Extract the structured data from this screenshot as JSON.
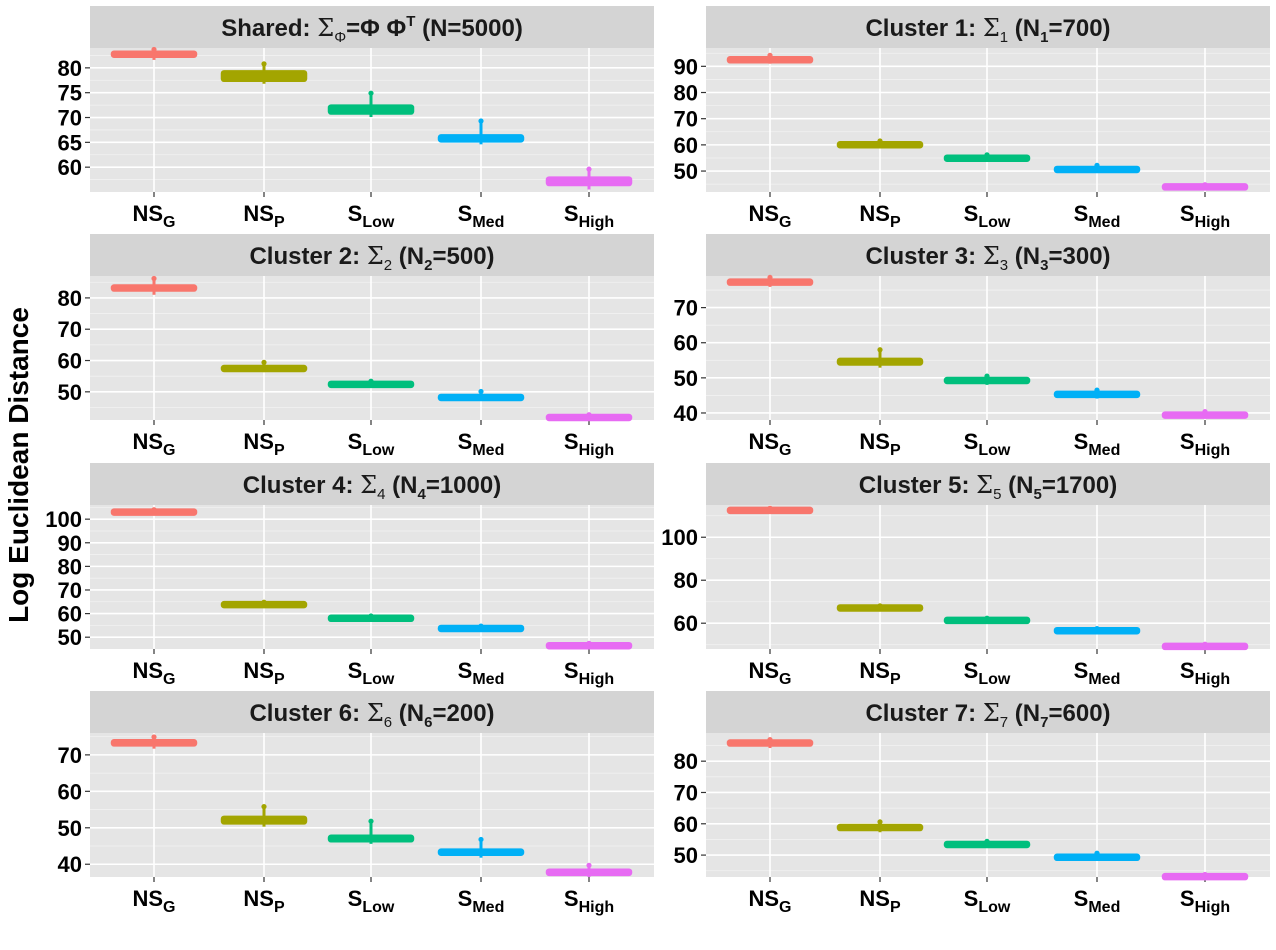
{
  "ylabel": "Log Euclidean Distance",
  "x_categories": [
    {
      "main": "NS",
      "sub": "G"
    },
    {
      "main": "NS",
      "sub": "P"
    },
    {
      "main": "S",
      "sub": "Low"
    },
    {
      "main": "S",
      "sub": "Med"
    },
    {
      "main": "S",
      "sub": "High"
    }
  ],
  "colors": {
    "NS_G": "#f8766d",
    "NS_P": "#a3a500",
    "S_Low": "#00bf7d",
    "S_Med": "#00b0f6",
    "S_High": "#e76bf3"
  },
  "chart_data": [
    {
      "type": "box",
      "strip": {
        "pre": "Shared: ",
        "sym": "Σ",
        "symSub": "Φ",
        "mid": "=Φ Φ",
        "midSup": "T",
        "post": " (N=5000)"
      },
      "ylim": [
        55,
        84
      ],
      "yticks": [
        60,
        65,
        70,
        75,
        80
      ],
      "boxes": [
        {
          "category": "NS_G",
          "q1": 82.4,
          "median": 82.8,
          "q3": 83.1,
          "lo": 81.6,
          "hi": 83.7
        },
        {
          "category": "NS_P",
          "q1": 77.4,
          "median": 78.3,
          "q3": 79.3,
          "lo": 76.8,
          "hi": 80.8
        },
        {
          "category": "S_Low",
          "q1": 70.8,
          "median": 71.6,
          "q3": 72.4,
          "lo": 70.1,
          "hi": 74.9
        },
        {
          "category": "S_Med",
          "q1": 65.2,
          "median": 65.8,
          "q3": 66.4,
          "lo": 64.6,
          "hi": 69.3
        },
        {
          "category": "S_High",
          "q1": 56.4,
          "median": 57.1,
          "q3": 57.9,
          "lo": 55.5,
          "hi": 59.6
        }
      ]
    },
    {
      "type": "box",
      "strip": {
        "pre": "Cluster 1: ",
        "sym": "Σ",
        "symSub": "1",
        "mid": " (N",
        "midSub": "1",
        "post": "=700)"
      },
      "ylim": [
        42,
        97
      ],
      "yticks": [
        50,
        60,
        70,
        80,
        90
      ],
      "boxes": [
        {
          "category": "NS_G",
          "q1": 92.0,
          "median": 92.5,
          "q3": 93.0,
          "lo": 91.0,
          "hi": 94.2
        },
        {
          "category": "NS_P",
          "q1": 59.6,
          "median": 60.0,
          "q3": 60.5,
          "lo": 59.0,
          "hi": 61.5
        },
        {
          "category": "S_Low",
          "q1": 54.4,
          "median": 54.9,
          "q3": 55.4,
          "lo": 53.6,
          "hi": 56.2
        },
        {
          "category": "S_Med",
          "q1": 50.1,
          "median": 50.6,
          "q3": 51.1,
          "lo": 49.6,
          "hi": 52.2
        },
        {
          "category": "S_High",
          "q1": 43.5,
          "median": 44.0,
          "q3": 44.4,
          "lo": 43.0,
          "hi": 44.8
        }
      ]
    },
    {
      "type": "box",
      "strip": {
        "pre": "Cluster 2: ",
        "sym": "Σ",
        "symSub": "2",
        "mid": " (N",
        "midSub": "2",
        "post": "=500)"
      },
      "ylim": [
        41,
        87
      ],
      "yticks": [
        50,
        60,
        70,
        80
      ],
      "boxes": [
        {
          "category": "NS_G",
          "q1": 82.6,
          "median": 83.1,
          "q3": 83.7,
          "lo": 81.0,
          "hi": 86.2
        },
        {
          "category": "NS_P",
          "q1": 56.9,
          "median": 57.4,
          "q3": 58.0,
          "lo": 56.3,
          "hi": 59.4
        },
        {
          "category": "S_Low",
          "q1": 51.9,
          "median": 52.4,
          "q3": 52.9,
          "lo": 51.4,
          "hi": 53.4
        },
        {
          "category": "S_Med",
          "q1": 47.7,
          "median": 48.2,
          "q3": 48.7,
          "lo": 47.2,
          "hi": 50.1
        },
        {
          "category": "S_High",
          "q1": 41.3,
          "median": 41.8,
          "q3": 42.3,
          "lo": 40.9,
          "hi": 42.7
        }
      ]
    },
    {
      "type": "box",
      "strip": {
        "pre": "Cluster 3: ",
        "sym": "Σ",
        "symSub": "3",
        "mid": " (N",
        "midSub": "3",
        "post": "=300)"
      },
      "ylim": [
        38,
        79
      ],
      "yticks": [
        40,
        50,
        60,
        70
      ],
      "boxes": [
        {
          "category": "NS_G",
          "q1": 76.6,
          "median": 77.3,
          "q3": 77.9,
          "lo": 75.9,
          "hi": 78.6
        },
        {
          "category": "NS_P",
          "q1": 53.8,
          "median": 54.6,
          "q3": 55.4,
          "lo": 52.9,
          "hi": 58.0
        },
        {
          "category": "S_Low",
          "q1": 48.6,
          "median": 49.2,
          "q3": 49.9,
          "lo": 48.0,
          "hi": 50.5
        },
        {
          "category": "S_Med",
          "q1": 44.7,
          "median": 45.3,
          "q3": 45.9,
          "lo": 44.1,
          "hi": 46.5
        },
        {
          "category": "S_High",
          "q1": 38.9,
          "median": 39.4,
          "q3": 39.9,
          "lo": 38.4,
          "hi": 40.4
        }
      ]
    },
    {
      "type": "box",
      "strip": {
        "pre": "Cluster 4: ",
        "sym": "Σ",
        "symSub": "4",
        "mid": " (N",
        "midSub": "4",
        "post": "=1000)"
      },
      "ylim": [
        45,
        106
      ],
      "yticks": [
        50,
        60,
        70,
        80,
        90,
        100
      ],
      "boxes": [
        {
          "category": "NS_G",
          "q1": 102.5,
          "median": 103.0,
          "q3": 103.5,
          "lo": 102.0,
          "hi": 104.0
        },
        {
          "category": "NS_P",
          "q1": 63.3,
          "median": 63.8,
          "q3": 64.3,
          "lo": 62.8,
          "hi": 64.8
        },
        {
          "category": "S_Low",
          "q1": 57.5,
          "median": 58.0,
          "q3": 58.5,
          "lo": 57.0,
          "hi": 59.0
        },
        {
          "category": "S_Med",
          "q1": 53.2,
          "median": 53.7,
          "q3": 54.2,
          "lo": 52.7,
          "hi": 54.7
        },
        {
          "category": "S_High",
          "q1": 45.9,
          "median": 46.4,
          "q3": 46.9,
          "lo": 45.4,
          "hi": 47.4
        }
      ]
    },
    {
      "type": "box",
      "strip": {
        "pre": "Cluster 5: ",
        "sym": "Σ",
        "symSub": "5",
        "mid": " (N",
        "midSub": "5",
        "post": "=1700)"
      },
      "ylim": [
        48,
        115
      ],
      "yticks": [
        60,
        80,
        100
      ],
      "boxes": [
        {
          "category": "NS_G",
          "q1": 112.0,
          "median": 112.5,
          "q3": 113.0,
          "lo": 111.5,
          "hi": 113.5
        },
        {
          "category": "NS_P",
          "q1": 66.6,
          "median": 67.1,
          "q3": 67.6,
          "lo": 66.1,
          "hi": 68.1
        },
        {
          "category": "S_Low",
          "q1": 60.8,
          "median": 61.3,
          "q3": 61.8,
          "lo": 60.3,
          "hi": 62.3
        },
        {
          "category": "S_Med",
          "q1": 56.0,
          "median": 56.5,
          "q3": 57.0,
          "lo": 55.0,
          "hi": 57.5
        },
        {
          "category": "S_High",
          "q1": 48.7,
          "median": 49.2,
          "q3": 49.7,
          "lo": 48.2,
          "hi": 50.2
        }
      ]
    },
    {
      "type": "box",
      "strip": {
        "pre": "Cluster 6: ",
        "sym": "Σ",
        "symSub": "6",
        "mid": " (N",
        "midSub": "6",
        "post": "=200)"
      },
      "ylim": [
        36.5,
        76
      ],
      "yticks": [
        40,
        50,
        60,
        70
      ],
      "boxes": [
        {
          "category": "NS_G",
          "q1": 72.6,
          "median": 73.3,
          "q3": 74.0,
          "lo": 71.7,
          "hi": 74.9
        },
        {
          "category": "NS_P",
          "q1": 51.2,
          "median": 52.1,
          "q3": 53.0,
          "lo": 50.3,
          "hi": 55.8
        },
        {
          "category": "S_Low",
          "q1": 46.3,
          "median": 47.0,
          "q3": 47.8,
          "lo": 45.6,
          "hi": 51.8
        },
        {
          "category": "S_Med",
          "q1": 42.6,
          "median": 43.3,
          "q3": 44.0,
          "lo": 41.8,
          "hi": 46.8
        },
        {
          "category": "S_High",
          "q1": 37.1,
          "median": 37.8,
          "q3": 38.5,
          "lo": 36.5,
          "hi": 39.7
        }
      ]
    },
    {
      "type": "box",
      "strip": {
        "pre": "Cluster 7: ",
        "sym": "Σ",
        "symSub": "7",
        "mid": " (N",
        "midSub": "7",
        "post": "=600)"
      },
      "ylim": [
        43,
        89
      ],
      "yticks": [
        50,
        60,
        70,
        80
      ],
      "boxes": [
        {
          "category": "NS_G",
          "q1": 85.3,
          "median": 85.8,
          "q3": 86.3,
          "lo": 84.2,
          "hi": 86.9
        },
        {
          "category": "NS_P",
          "q1": 58.1,
          "median": 58.8,
          "q3": 59.5,
          "lo": 57.3,
          "hi": 60.6
        },
        {
          "category": "S_Low",
          "q1": 52.9,
          "median": 53.4,
          "q3": 53.9,
          "lo": 52.4,
          "hi": 54.4
        },
        {
          "category": "S_Med",
          "q1": 48.8,
          "median": 49.3,
          "q3": 49.8,
          "lo": 48.3,
          "hi": 50.6
        },
        {
          "category": "S_High",
          "q1": 42.6,
          "median": 43.1,
          "q3": 43.6,
          "lo": 42.1,
          "hi": 43.8
        }
      ]
    }
  ]
}
